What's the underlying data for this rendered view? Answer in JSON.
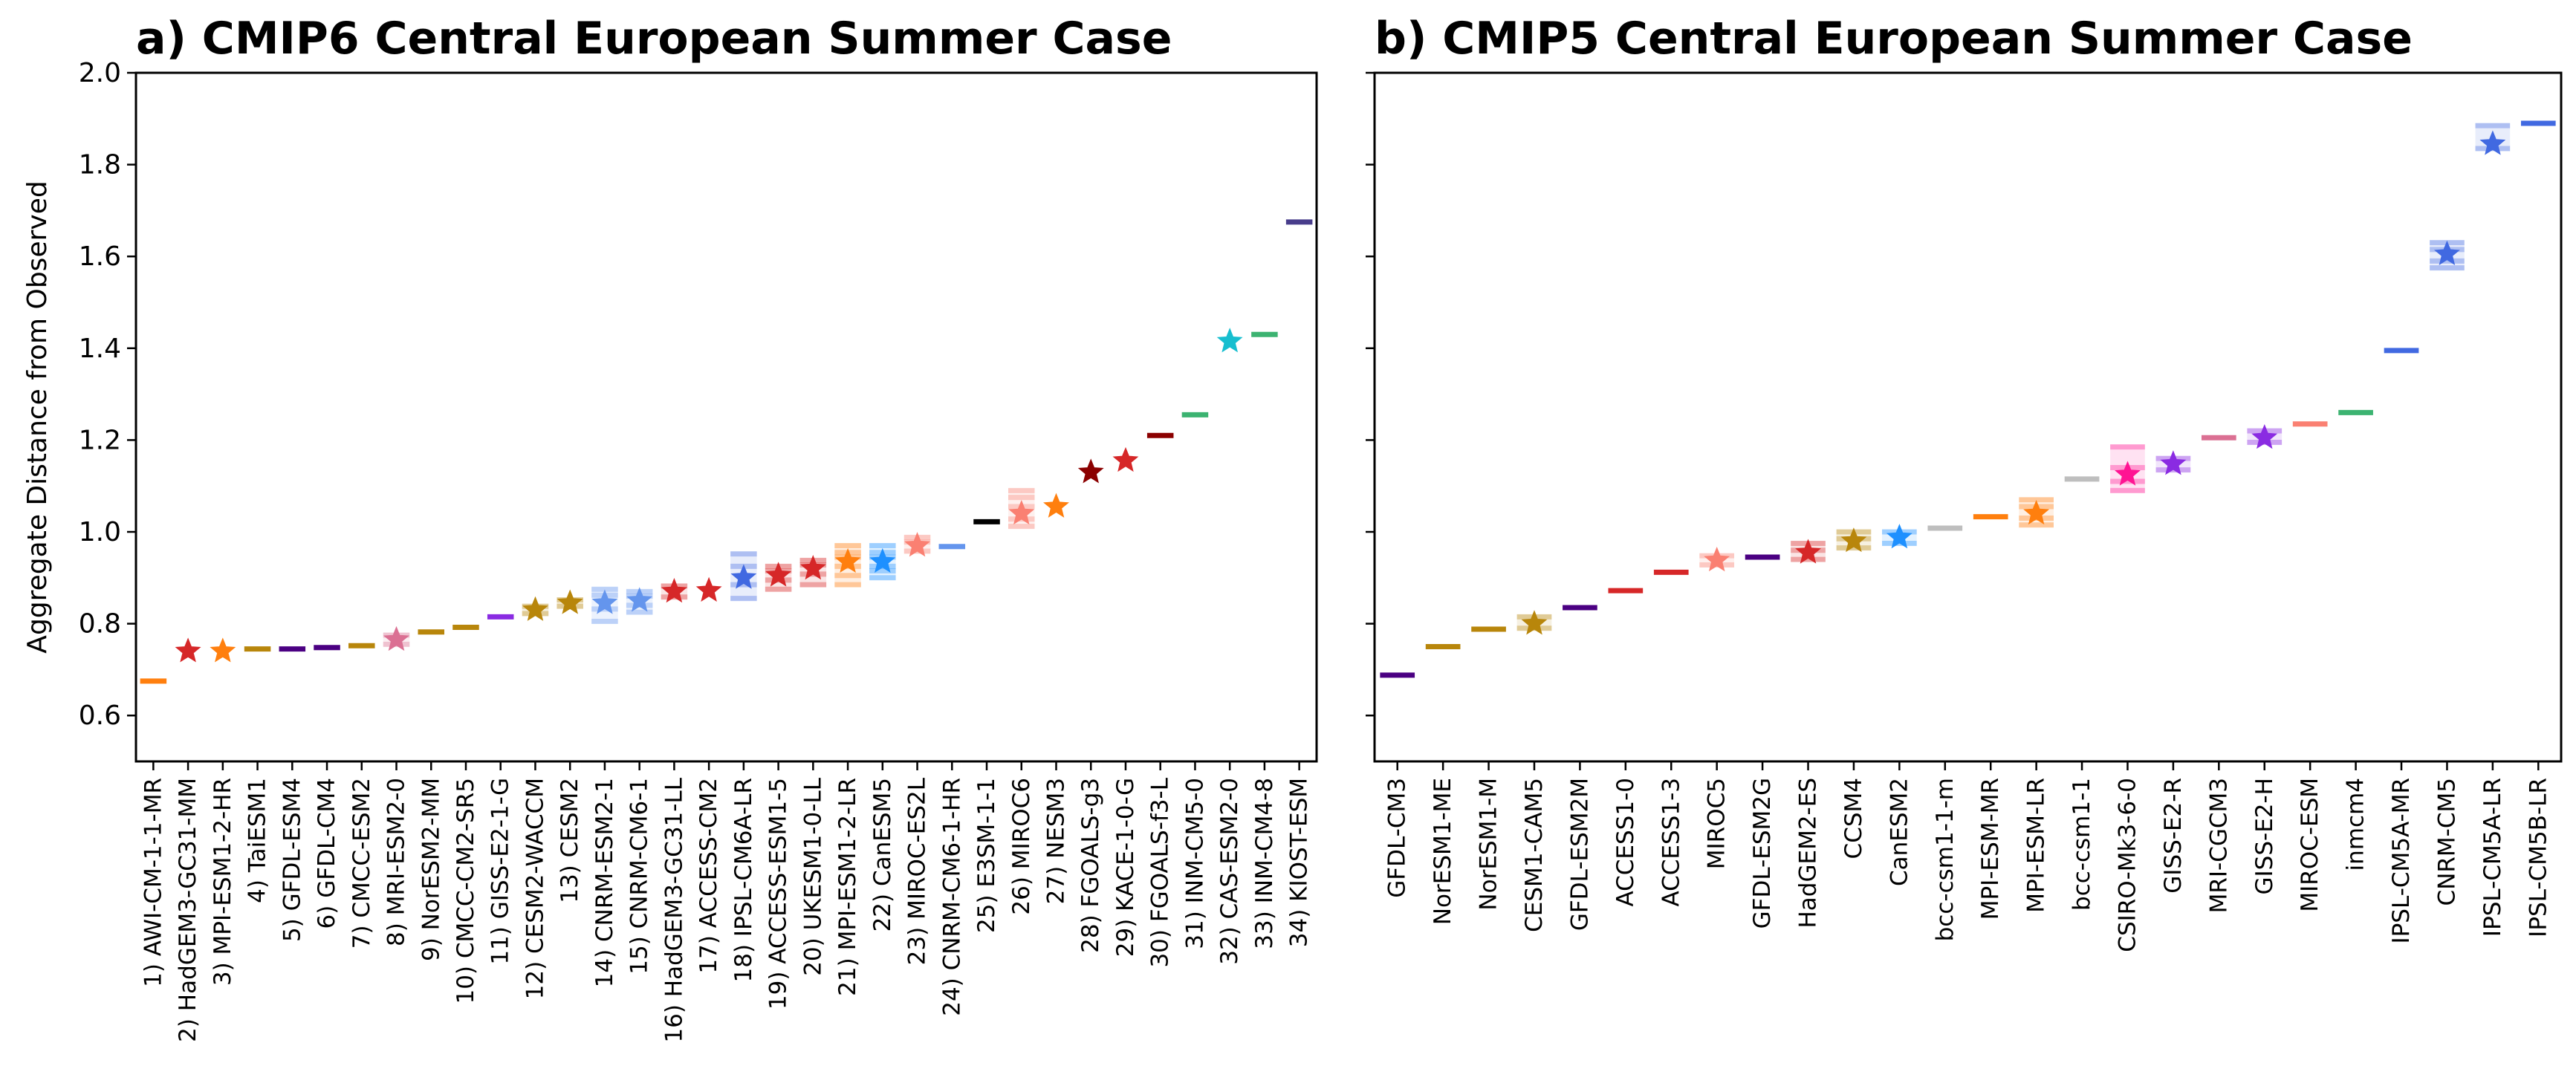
{
  "chart_data": [
    {
      "type": "scatter",
      "title": "a) CMIP6 Central European Summer Case",
      "ylabel": "Aggregate Distance from Observed",
      "ylim": [
        0.5,
        2.0
      ],
      "yticks": [
        0.6,
        0.8,
        1.0,
        1.2,
        1.4,
        1.6,
        1.8,
        2.0
      ],
      "ytick_labels": [
        "0.6",
        "0.8",
        "1.0",
        "1.2",
        "1.4",
        "1.6",
        "1.8",
        "2.0"
      ],
      "grid": false,
      "categories": [
        "1) AWI-CM-1-1-MR",
        "2) HadGEM3-GC31-MM",
        "3) MPI-ESM1-2-HR",
        "4) TaiESM1",
        "5) GFDL-ESM4",
        "6) GFDL-CM4",
        "7) CMCC-ESM2",
        "8) MRI-ESM2-0",
        "9) NorESM2-MM",
        "10) CMCC-CM2-SR5",
        "11) GISS-E2-1-G",
        "12) CESM2-WACCM",
        "13) CESM2",
        "14) CNRM-ESM2-1",
        "15) CNRM-CM6-1",
        "16) HadGEM3-GC31-LL",
        "17) ACCESS-CM2",
        "18) IPSL-CM6A-LR",
        "19) ACCESS-ESM1-5",
        "20) UKESM1-0-LL",
        "21) MPI-ESM1-2-LR",
        "22) CanESM5",
        "23) MIROC-ES2L",
        "24) CNRM-CM6-1-HR",
        "25) E3SM-1-1",
        "26) MIROC6",
        "27) NESM3",
        "28) FGOALS-g3",
        "29) KACE-1-0-G",
        "30) FGOALS-f3-L",
        "31) INM-CM5-0",
        "32) CAS-ESM2-0",
        "33) INM-CM4-8",
        "34) KIOST-ESM"
      ],
      "values": [
        0.675,
        0.74,
        0.74,
        0.745,
        0.745,
        0.748,
        0.752,
        0.765,
        0.782,
        0.792,
        0.815,
        0.83,
        0.845,
        0.845,
        0.85,
        0.87,
        0.872,
        0.9,
        0.905,
        0.92,
        0.935,
        0.935,
        0.97,
        0.968,
        1.022,
        1.04,
        1.055,
        1.13,
        1.155,
        1.21,
        1.255,
        1.415,
        1.43,
        1.675
      ],
      "star": [
        false,
        true,
        true,
        false,
        false,
        false,
        false,
        true,
        false,
        false,
        false,
        true,
        true,
        true,
        true,
        true,
        true,
        true,
        true,
        true,
        true,
        true,
        true,
        false,
        false,
        true,
        true,
        true,
        true,
        false,
        false,
        true,
        false,
        false
      ],
      "spread": [
        [],
        [],
        [],
        [],
        [],
        [],
        [],
        [
          0.775,
          0.755
        ],
        [],
        [],
        [],
        [
          0.838,
          0.822
        ],
        [
          0.852,
          0.838
        ],
        [
          0.875,
          0.862,
          0.832,
          0.805
        ],
        [
          0.87,
          0.86,
          0.84,
          0.825
        ],
        [
          0.882,
          0.858
        ],
        [],
        [
          0.952,
          0.925,
          0.885,
          0.855
        ],
        [
          0.925,
          0.915,
          0.895,
          0.875
        ],
        [
          0.938,
          0.928,
          0.908,
          0.885
        ],
        [
          0.97,
          0.955,
          0.945,
          0.925,
          0.905,
          0.885
        ],
        [
          0.97,
          0.955,
          0.945,
          0.925,
          0.915,
          0.9
        ],
        [
          0.988,
          0.978,
          0.958
        ],
        [],
        [],
        [
          1.09,
          1.075,
          1.055,
          1.028,
          1.012
        ],
        [],
        [],
        [],
        [],
        [],
        [],
        [],
        []
      ],
      "colors": [
        "#ff7f0e",
        "#d62728",
        "#ff7f0e",
        "#b8860b",
        "#4b0082",
        "#4b0082",
        "#b8860b",
        "#db7093",
        "#b8860b",
        "#b8860b",
        "#8a2be2",
        "#b8860b",
        "#b8860b",
        "#6495ed",
        "#6495ed",
        "#d62728",
        "#d62728",
        "#4169e1",
        "#d62728",
        "#d62728",
        "#ff7f0e",
        "#1e90ff",
        "#fa8072",
        "#6495ed",
        "#000000",
        "#fa8072",
        "#ff7f0e",
        "#8b0000",
        "#d62728",
        "#8b0000",
        "#3cb371",
        "#17becf",
        "#3cb371",
        "#483d8b"
      ]
    },
    {
      "type": "scatter",
      "title": "b) CMIP5 Central European Summer Case",
      "ylabel": "",
      "ylim": [
        0.5,
        2.0
      ],
      "grid": false,
      "categories": [
        "GFDL-CM3",
        "NorESM1-ME",
        "NorESM1-M",
        "CESM1-CAM5",
        "GFDL-ESM2M",
        "ACCESS1-0",
        "ACCESS1-3",
        "MIROC5",
        "GFDL-ESM2G",
        "HadGEM2-ES",
        "CCSM4",
        "CanESM2",
        "bcc-csm1-1-m",
        "MPI-ESM-MR",
        "MPI-ESM-LR",
        "bcc-csm1-1",
        "CSIRO-Mk3-6-0",
        "GISS-E2-R",
        "MRI-CGCM3",
        "GISS-E2-H",
        "MIROC-ESM",
        "inmcm4",
        "IPSL-CM5A-MR",
        "CNRM-CM5",
        "IPSL-CM5A-LR",
        "IPSL-CM5B-LR"
      ],
      "values": [
        0.688,
        0.75,
        0.788,
        0.8,
        0.835,
        0.872,
        0.912,
        0.938,
        0.945,
        0.955,
        0.98,
        0.988,
        1.008,
        1.033,
        1.04,
        1.115,
        1.125,
        1.148,
        1.205,
        1.205,
        1.235,
        1.26,
        1.395,
        1.605,
        1.845,
        1.89
      ],
      "star": [
        false,
        false,
        false,
        true,
        false,
        false,
        false,
        true,
        false,
        true,
        true,
        true,
        false,
        false,
        true,
        false,
        true,
        true,
        false,
        true,
        false,
        false,
        false,
        true,
        true,
        false
      ],
      "spread": [
        [],
        [],
        [],
        [
          0.815,
          0.79
        ],
        [],
        [],
        [],
        [
          0.948,
          0.928
        ],
        [],
        [
          0.975,
          0.96,
          0.94
        ],
        [
          1.0,
          0.985,
          0.965
        ],
        [
          1.0,
          0.975
        ],
        [],
        [],
        [
          1.07,
          1.055,
          1.03,
          1.015
        ],
        [],
        [
          1.185,
          1.14,
          1.11,
          1.09
        ],
        [
          1.16,
          1.135
        ],
        [],
        [
          1.22,
          1.195
        ],
        [],
        [],
        [],
        [
          1.63,
          1.615,
          1.59,
          1.575
        ],
        [
          1.885,
          1.835
        ],
        []
      ],
      "colors": [
        "#4b0082",
        "#b8860b",
        "#b8860b",
        "#b8860b",
        "#4b0082",
        "#d62728",
        "#d62728",
        "#fa8072",
        "#4b0082",
        "#d62728",
        "#b8860b",
        "#1e90ff",
        "#bebebe",
        "#ff7f0e",
        "#ff7f0e",
        "#bebebe",
        "#ff1493",
        "#8a2be2",
        "#db7093",
        "#8a2be2",
        "#fa8072",
        "#3cb371",
        "#4169e1",
        "#4169e1",
        "#4169e1",
        "#4169e1"
      ]
    }
  ]
}
